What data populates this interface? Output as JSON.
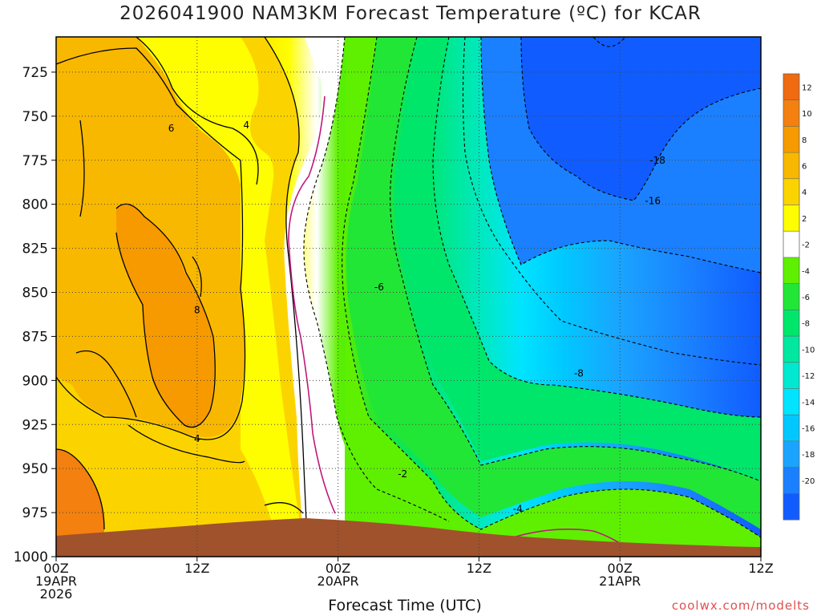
{
  "chart_data": {
    "type": "heatmap",
    "title": "2026041900 NAM3KM Forecast Temperature (ºC) for KCAR",
    "xlabel": "Forecast Time (UTC)",
    "credit": "coolwx.com/modelts",
    "y_ticks": [
      725,
      750,
      775,
      800,
      825,
      850,
      875,
      900,
      925,
      950,
      975,
      1000
    ],
    "ylim": [
      1000,
      705
    ],
    "x_ticks": [
      {
        "hour": 0,
        "lines": [
          "00Z",
          "19APR",
          "2026"
        ]
      },
      {
        "hour": 12,
        "lines": [
          "12Z"
        ]
      },
      {
        "hour": 24,
        "lines": [
          "00Z",
          "20APR"
        ]
      },
      {
        "hour": 36,
        "lines": [
          "12Z"
        ]
      },
      {
        "hour": 48,
        "lines": [
          "00Z",
          "21APR"
        ]
      },
      {
        "hour": 60,
        "lines": [
          "12Z"
        ]
      }
    ],
    "xlim": [
      0,
      60
    ],
    "grid": true,
    "colorbar_labels": [
      12,
      10,
      8,
      6,
      4,
      2,
      -2,
      -4,
      -6,
      -8,
      -10,
      -12,
      -14,
      -16,
      -18,
      -20
    ],
    "colorbar_colors": [
      "#f06a10",
      "#f3800f",
      "#f69a00",
      "#f8b800",
      "#fbd400",
      "#fefe00",
      "#ffffff",
      "#5ef000",
      "#22e636",
      "#00e66b",
      "#00e8a0",
      "#00e8d0",
      "#00e4ff",
      "#00c8ff",
      "#1aa4ff",
      "#1a80ff",
      "#105cff"
    ],
    "contour_labels": [
      {
        "text": "6",
        "hour": 9.8,
        "p": 757
      },
      {
        "text": "4",
        "hour": 16.2,
        "p": 755
      },
      {
        "text": "8",
        "hour": 12.0,
        "p": 860
      },
      {
        "text": "4",
        "hour": 12.0,
        "p": 933
      },
      {
        "text": "-6",
        "hour": 27.5,
        "p": 847
      },
      {
        "text": "-2",
        "hour": 29.5,
        "p": 953
      },
      {
        "text": "-4",
        "hour": 39.3,
        "p": 973
      },
      {
        "text": "-8",
        "hour": 44.5,
        "p": 896
      },
      {
        "text": "-16",
        "hour": 50.8,
        "p": 798
      },
      {
        "text": "-18",
        "hour": 51.2,
        "p": 775
      }
    ]
  }
}
